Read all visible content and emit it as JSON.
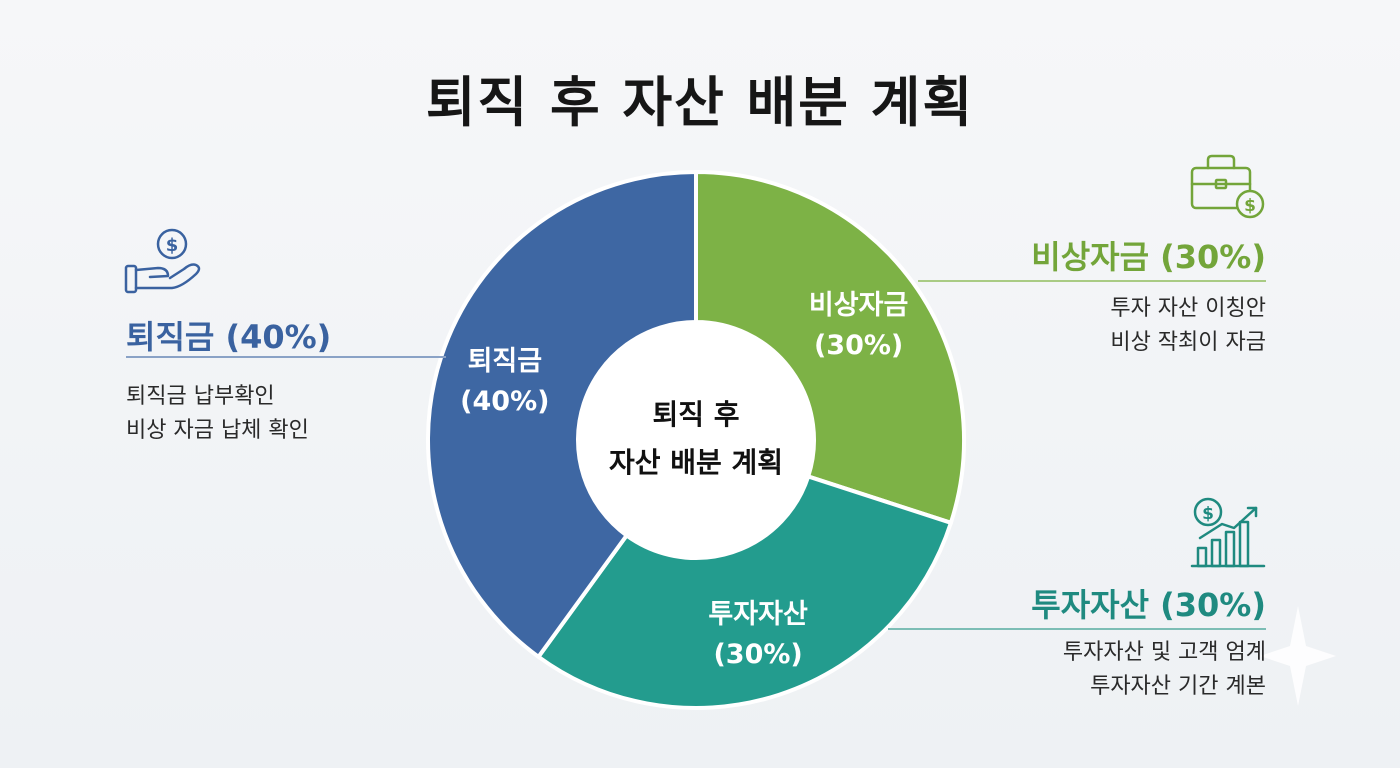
{
  "title": "퇴직 후 자산 배분 계획",
  "colors": {
    "retirement": "#3e67a3",
    "emergency": "#7db246",
    "investment": "#239c8e"
  },
  "chart_data": {
    "type": "pie",
    "variant": "donut",
    "center_label": [
      "퇴직 후",
      "자산 배분 계획"
    ],
    "slices": [
      {
        "name": "비상자금",
        "value": 30,
        "value_label": "(30%)",
        "color": "#7db246"
      },
      {
        "name": "투자자산",
        "value": 30,
        "value_label": "(30%)",
        "color": "#239c8e"
      },
      {
        "name": "퇴직금",
        "value": 40,
        "value_label": "(40%)",
        "color": "#3e67a3"
      }
    ]
  },
  "labels": {
    "retirement": {
      "title": "퇴직금 (40%)",
      "lines": [
        "퇴직금 납부확인",
        "비상 자금 납체 확인"
      ],
      "icon": "hand-coin-icon"
    },
    "emergency": {
      "title": "비상자금 (30%)",
      "lines": [
        "투자 자산 이칭안",
        "비상 작최이 자금"
      ],
      "icon": "briefcase-coin-icon"
    },
    "investment": {
      "title": "투자자산 (30%)",
      "lines": [
        "투자자산 및 고객 엄계",
        "투자자산 기간 계본"
      ],
      "icon": "growth-chart-icon"
    }
  }
}
